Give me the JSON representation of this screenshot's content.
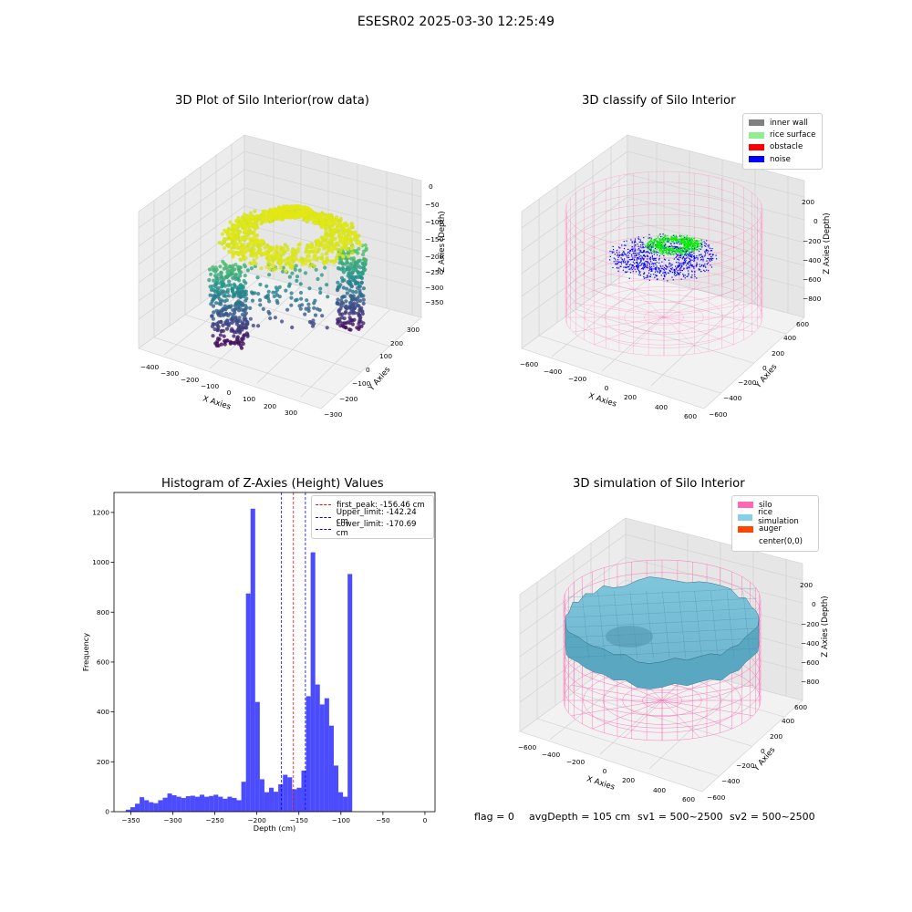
{
  "suptitle": "ESESR02 2025-03-30 12:25:49",
  "panels": {
    "raw": {
      "title": "3D Plot of Silo Interior(row data)",
      "xlabel": "X Axies",
      "ylabel": "Y Axies",
      "zlabel": "Z Axies (Depth)",
      "xticks": [
        "−400",
        "−300",
        "−200",
        "−100",
        "0",
        "100",
        "200",
        "300"
      ],
      "yticks": [
        "−300",
        "−200",
        "−100",
        "0",
        "100",
        "200",
        "300"
      ],
      "zticks": [
        "0",
        "−50",
        "−100",
        "−150",
        "−200",
        "−250",
        "−300",
        "−350"
      ]
    },
    "classify": {
      "title": "3D classify of Silo Interior",
      "xlabel": "X Axies",
      "ylabel": "Y Axies",
      "zlabel": "Z Axies (Depth)",
      "xticks": [
        "−600",
        "−400",
        "−200",
        "0",
        "200",
        "400",
        "600"
      ],
      "yticks": [
        "−600",
        "−400",
        "−200",
        "0",
        "200",
        "400",
        "600"
      ],
      "zticks": [
        "200",
        "0",
        "−200",
        "−400",
        "−600",
        "−800"
      ],
      "legend": [
        {
          "label": "inner wall",
          "color": "#808080"
        },
        {
          "label": "rice surface",
          "color": "#90ee90"
        },
        {
          "label": "obstacle",
          "color": "#ff0000"
        },
        {
          "label": "noise",
          "color": "#0000ff"
        }
      ]
    },
    "simulation": {
      "title": "3D simulation of Silo Interior",
      "xlabel": "X Axies",
      "ylabel": "Y Axies",
      "zlabel": "Z Axies (Depth)",
      "xticks": [
        "−600",
        "−400",
        "−200",
        "0",
        "200",
        "400",
        "600"
      ],
      "yticks": [
        "−600",
        "−400",
        "−200",
        "0",
        "200",
        "400",
        "600"
      ],
      "zticks": [
        "200",
        "0",
        "−200",
        "−400",
        "−600",
        "−800"
      ],
      "legend": [
        {
          "label": "silo",
          "color": "#ff69b4"
        },
        {
          "label": "rice simulation",
          "color": "#87ceeb"
        },
        {
          "label": "auger",
          "color": "#ff4500"
        },
        {
          "label": "center(0,0)",
          "color": "#ffffff"
        }
      ]
    }
  },
  "status": {
    "flag": "flag = 0",
    "avg_depth": "avgDepth = 105 cm",
    "sv1": "sv1 = 500~2500",
    "sv2": "sv2 = 500~2500"
  },
  "chart_data": [
    {
      "type": "histogram",
      "title": "Histogram of Z-Axies (Height) Values",
      "xlabel": "Depth (cm)",
      "ylabel": "Frequency",
      "xlim": [
        -370,
        12
      ],
      "ylim": [
        0,
        1280
      ],
      "xticks": [
        -350,
        -300,
        -250,
        -200,
        -150,
        -100,
        -50,
        0
      ],
      "yticks": [
        0,
        200,
        400,
        600,
        800,
        1000,
        1200
      ],
      "xticklabels": [
        "−350",
        "−300",
        "−250",
        "−200",
        "−150",
        "−100",
        "−50",
        "0"
      ],
      "yticklabels": [
        "0",
        "200",
        "400",
        "600",
        "800",
        "1000",
        "1200"
      ],
      "bar_color": "#0000ff",
      "bins_start": -356,
      "bin_width": 5.5,
      "counts": [
        8,
        18,
        32,
        58,
        46,
        38,
        34,
        46,
        56,
        73,
        66,
        60,
        55,
        62,
        64,
        60,
        68,
        60,
        63,
        68,
        60,
        52,
        60,
        55,
        46,
        120,
        875,
        1215,
        440,
        130,
        78,
        96,
        80,
        110,
        148,
        138,
        90,
        96,
        165,
        463,
        1040,
        510,
        430,
        455,
        345,
        185,
        78,
        60,
        953
      ],
      "vlines": [
        {
          "label": "first_peak: -156.46 cm",
          "x": -156.46,
          "color": "#ff0000"
        },
        {
          "label": "Upper_limit: -142.24 cm",
          "x": -142.24,
          "color": "#0000ff"
        },
        {
          "label": "Lower_limit: -170.69 cm",
          "x": -170.69,
          "color": "#0000ff"
        }
      ],
      "legend_position": "upper right"
    }
  ]
}
